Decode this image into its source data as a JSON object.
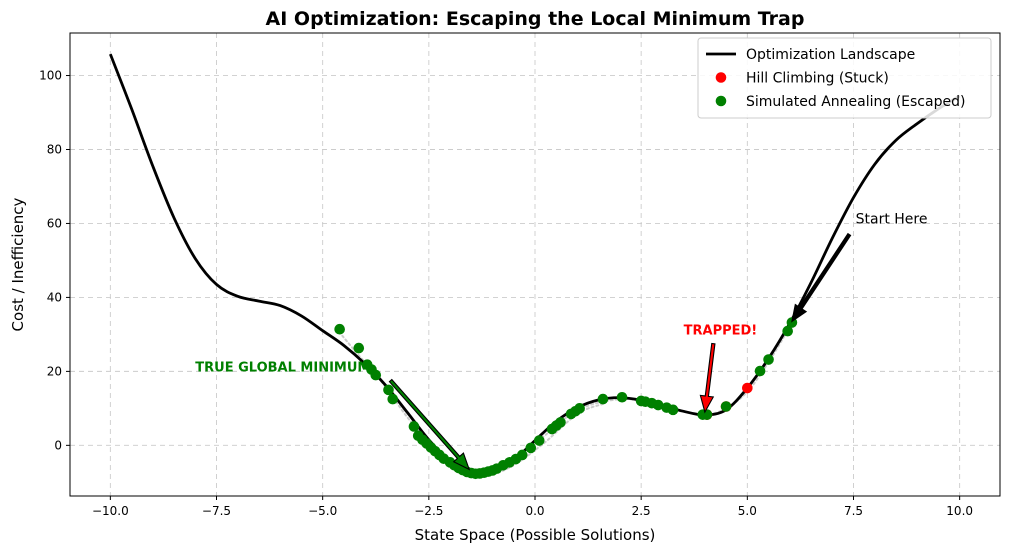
{
  "chart_data": {
    "type": "line",
    "title": "AI Optimization: Escaping the Local Minimum Trap",
    "xlabel": "State Space (Possible Solutions)",
    "ylabel": "Cost / Inefficiency",
    "xlim": [
      -10.95,
      10.95
    ],
    "ylim": [
      -13.7,
      111.5
    ],
    "x_ticks": [
      -10.0,
      -7.5,
      -5.0,
      -2.5,
      0.0,
      2.5,
      5.0,
      7.5,
      10.0
    ],
    "x_tick_labels": [
      "−10.0",
      "−7.5",
      "−5.0",
      "−2.5",
      "0.0",
      "2.5",
      "5.0",
      "7.5",
      "10.0"
    ],
    "y_ticks": [
      0,
      20,
      40,
      60,
      80,
      100
    ],
    "y_tick_labels": [
      "0",
      "20",
      "40",
      "60",
      "80",
      "100"
    ],
    "grid": true,
    "legend_position": "top-right",
    "series": [
      {
        "name": "Optimization Landscape",
        "kind": "line",
        "color": "#000000",
        "x": [
          -10.0,
          -9.5,
          -9.0,
          -8.5,
          -8.0,
          -7.5,
          -7.0,
          -6.5,
          -6.0,
          -5.5,
          -5.0,
          -4.5,
          -4.0,
          -3.5,
          -3.0,
          -2.5,
          -2.0,
          -1.5,
          -1.25,
          -1.0,
          -0.5,
          0.0,
          0.5,
          1.0,
          1.5,
          2.0,
          2.5,
          3.0,
          3.5,
          4.0,
          4.5,
          5.0,
          5.5,
          6.0,
          6.5,
          7.0,
          7.5,
          8.0,
          8.5,
          9.0,
          9.5,
          10.0
        ],
        "y": [
          105.8,
          91.0,
          75.5,
          61.5,
          50.5,
          43.5,
          40.3,
          39.0,
          37.8,
          35.0,
          31.0,
          27.0,
          22.0,
          16.0,
          8.8,
          1.5,
          -4.2,
          -7.3,
          -7.6,
          -7.2,
          -4.0,
          1.3,
          6.5,
          10.2,
          12.3,
          12.9,
          12.2,
          10.8,
          9.2,
          8.2,
          9.6,
          15.5,
          23.5,
          33.0,
          44.0,
          56.0,
          67.0,
          76.0,
          82.5,
          87.0,
          91.0,
          94.5
        ]
      },
      {
        "name": "Hill Climbing (Stuck)",
        "kind": "scatter",
        "color": "#ff0000",
        "x": [
          5.0,
          4.5,
          4.05
        ],
        "y": [
          15.5,
          10.5,
          8.3
        ]
      },
      {
        "name": "Simulated Annealing (Escaped)",
        "kind": "scatter",
        "color": "#008000",
        "x": [
          6.05,
          5.95,
          5.5,
          5.3,
          4.5,
          4.05,
          3.95,
          3.25,
          3.1,
          2.9,
          2.75,
          2.6,
          2.5,
          2.05,
          1.6,
          1.05,
          0.95,
          0.85,
          0.6,
          0.5,
          0.4,
          0.1,
          -0.1,
          -0.3,
          -0.45,
          -0.6,
          -0.75,
          -0.9,
          -1.0,
          -1.1,
          -1.2,
          -1.3,
          -1.4,
          -1.5,
          -1.6,
          -1.7,
          -1.8,
          -1.9,
          -2.0,
          -2.15,
          -2.25,
          -2.35,
          -2.45,
          -2.55,
          -2.65,
          -2.75,
          -2.85,
          -3.35,
          -3.45,
          -3.75,
          -3.85,
          -3.95,
          -4.15,
          -4.6
        ],
        "y": [
          33.2,
          30.9,
          23.2,
          20.1,
          10.5,
          8.3,
          8.3,
          9.6,
          10.2,
          10.9,
          11.4,
          11.8,
          12.0,
          13.0,
          12.5,
          10.0,
          9.2,
          8.5,
          6.2,
          5.3,
          4.4,
          1.3,
          -0.7,
          -2.6,
          -3.7,
          -4.6,
          -5.4,
          -6.3,
          -6.8,
          -7.1,
          -7.4,
          -7.6,
          -7.7,
          -7.5,
          -7.2,
          -6.7,
          -6.1,
          -5.4,
          -4.6,
          -3.6,
          -2.6,
          -1.6,
          -0.6,
          0.5,
          1.5,
          2.6,
          5.1,
          12.5,
          15.0,
          19.0,
          20.5,
          21.8,
          26.3,
          31.4
        ]
      }
    ],
    "search_trails": {
      "color": "#cccccc",
      "style": "dotted",
      "paths": [
        {
          "x": [
            6.05,
            5.5,
            5.0,
            4.5,
            4.05,
            3.3,
            2.6,
            2.0,
            1.0,
            0.0,
            -0.8,
            -1.3
          ],
          "y": [
            33.0,
            22.5,
            14.5,
            10.0,
            8.5,
            9.5,
            11.5,
            12.5,
            9.5,
            0.5,
            -5.8,
            -6.9
          ]
        },
        {
          "x": [
            -1.3,
            -1.8,
            -2.4,
            -3.0,
            -3.6,
            -4.2,
            -4.6
          ],
          "y": [
            -7.0,
            -5.2,
            -0.5,
            7.5,
            17.0,
            25.0,
            30.5
          ]
        },
        {
          "x": [
            -2.5,
            -2.0,
            -1.3,
            -0.6,
            0.2,
            1.0,
            1.6
          ],
          "y": [
            -0.2,
            -5.8,
            -8.4,
            -6.0,
            0.5,
            8.5,
            11.2
          ]
        }
      ]
    },
    "annotations": [
      {
        "text": "Start Here",
        "x": 7.55,
        "y": 60,
        "color": "#000000",
        "bold": false,
        "arrow_from": [
          7.4,
          57
        ],
        "arrow_to": [
          6.05,
          33.5
        ],
        "arrow_face": "#000000"
      },
      {
        "text": "TRAPPED!",
        "x": 3.5,
        "y": 30,
        "color": "#ff0000",
        "bold": true,
        "arrow_from": [
          4.2,
          27.5
        ],
        "arrow_to": [
          4.0,
          9.0
        ],
        "arrow_face": "#ff0000"
      },
      {
        "text": "TRUE GLOBAL MINIMUM",
        "x": -8.0,
        "y": 20,
        "color": "#008000",
        "bold": true,
        "arrow_from": [
          -3.4,
          17.5
        ],
        "arrow_to": [
          -1.55,
          -6.5
        ],
        "arrow_face": "#008000"
      }
    ]
  }
}
